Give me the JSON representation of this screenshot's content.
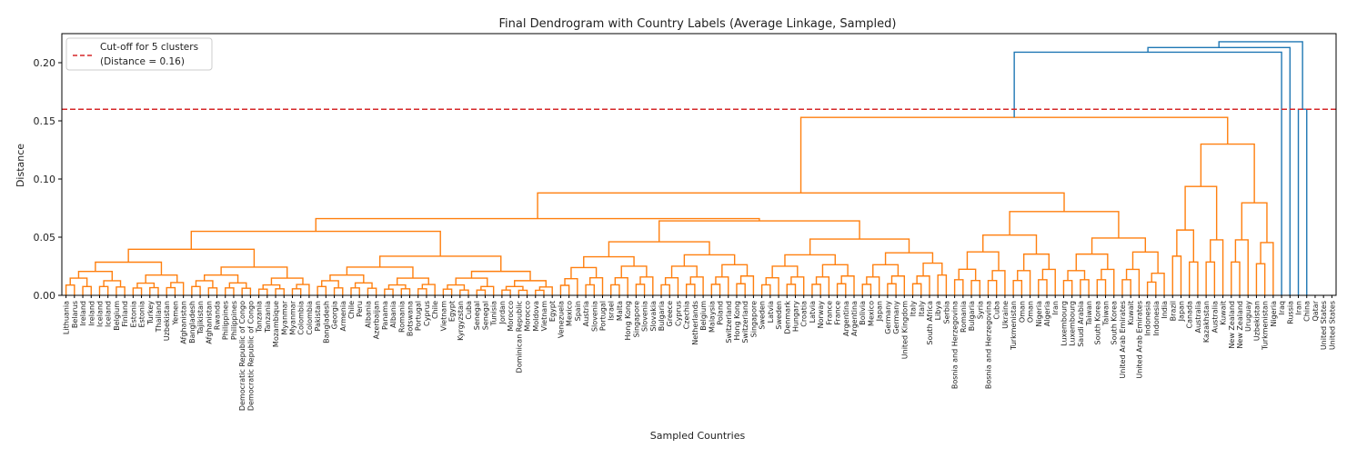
{
  "chart_data": {
    "type": "dendrogram",
    "title": "Final Dendrogram with Country Labels (Average Linkage, Sampled)",
    "xlabel": "Sampled Countries",
    "ylabel": "Distance",
    "ylim": [
      0,
      0.225
    ],
    "yticks": [
      "0.00",
      "0.05",
      "0.10",
      "0.15",
      "0.20"
    ],
    "ytick_values": [
      0,
      0.05,
      0.1,
      0.15,
      0.2
    ],
    "cutoff": 0.16,
    "legend": {
      "position": "upper-left",
      "line1": "Cut-off for 5 clusters",
      "line2": "(Distance = 0.16)"
    },
    "colors": {
      "cluster": "#ff7f0e",
      "upper": "#1f77b4",
      "cutoff": "#d62728"
    },
    "leaves": [
      "Lithuania",
      "Belarus",
      "Ireland",
      "Ireland",
      "Iceland",
      "Iceland",
      "Belgium",
      "Finland",
      "Estonia",
      "Estonia",
      "Turkey",
      "Thailand",
      "Uzbekistan",
      "Yemen",
      "Afghanistan",
      "Bangladesh",
      "Tajikistan",
      "Afghanistan",
      "Rwanda",
      "Philippines",
      "Philippines",
      "Democratic Republic of Congo",
      "Democratic Republic of Congo",
      "Tanzania",
      "Tanzania",
      "Mozambique",
      "Myanmar",
      "Myanmar",
      "Colombia",
      "Colombia",
      "Pakistan",
      "Bangladesh",
      "Georgia",
      "Armenia",
      "Chile",
      "Peru",
      "Albania",
      "Azerbaijan",
      "Panama",
      "Albania",
      "Romania",
      "Botswana",
      "Portugal",
      "Cyprus",
      "Chile",
      "Vietnam",
      "Egypt",
      "Kyrgyzstan",
      "Cuba",
      "Senegal",
      "Senegal",
      "Tunisia",
      "Jordan",
      "Morocco",
      "Dominican Republic",
      "Morocco",
      "Moldova",
      "Vietnam",
      "Egypt",
      "Venezuela",
      "Mexico",
      "Spain",
      "Austria",
      "Slovenia",
      "Portugal",
      "Israel",
      "Malta",
      "Hong Kong",
      "Singapore",
      "Slovenia",
      "Slovakia",
      "Bulgaria",
      "Greece",
      "Cyprus",
      "Czechia",
      "Netherlands",
      "Belgium",
      "Malaysia",
      "Poland",
      "Switzerland",
      "Hong Kong",
      "Switzerland",
      "Singapore",
      "Sweden",
      "Latvia",
      "Sweden",
      "Denmark",
      "Hungary",
      "Croatia",
      "Latvia",
      "Norway",
      "France",
      "France",
      "Argentina",
      "Argentina",
      "Bolivia",
      "Mexico",
      "Japan",
      "Germany",
      "Germany",
      "United Kingdom",
      "Italy",
      "Italy",
      "South Africa",
      "Libya",
      "Serbia",
      "Bosnia and Herzegovina",
      "Romania",
      "Bulgaria",
      "Syria",
      "Bosnia and Herzegovina",
      "Cuba",
      "Ukraine",
      "Turkmenistan",
      "Oman",
      "Oman",
      "Nigeria",
      "Algeria",
      "Iran",
      "Luxembourg",
      "Luxembourg",
      "Saudi Arabia",
      "Taiwan",
      "South Korea",
      "Taiwan",
      "South Korea",
      "United Arab Emirates",
      "Kuwait",
      "United Arab Emirates",
      "Indonesia",
      "Indonesia",
      "India",
      "Brazil",
      "Japan",
      "Canada",
      "Australia",
      "Kazakhstan",
      "Australia",
      "Kuwait",
      "New Zealand",
      "New Zealand",
      "Uruguay",
      "Uzbekistan",
      "Turkmenistan",
      "Nigeria",
      "Iraq",
      "Russia",
      "Iran",
      "China",
      "Qatar",
      "United States",
      "United States"
    ]
  }
}
